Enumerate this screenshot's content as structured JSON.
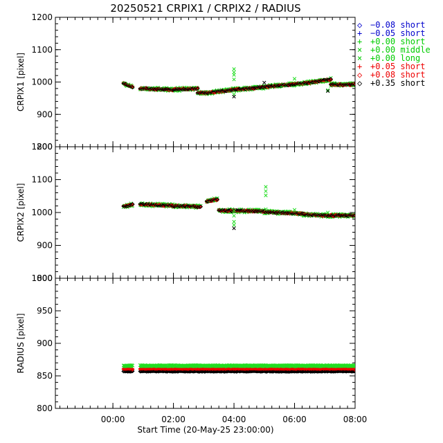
{
  "chart_data": {
    "type": "scatter",
    "title": "20250521 CRPIX1 / CRPIX2 / RADIUS",
    "xlabel": "Start Time (20-May-25 23:00:00)",
    "x_unit": "hours since 23:00",
    "xlim": [
      -0.9,
      9.0
    ],
    "x_ticks": [
      {
        "value": 1,
        "label": "00:00"
      },
      {
        "value": 3,
        "label": "02:00"
      },
      {
        "value": 5,
        "label": "04:00"
      },
      {
        "value": 7,
        "label": "06:00"
      },
      {
        "value": 9,
        "label": "08:00"
      }
    ],
    "panels": [
      {
        "name": "crpix1",
        "ylabel": "CRPIX1 [pixel]",
        "ylim": [
          800,
          1200
        ],
        "y_ticks": [
          800,
          900,
          1000,
          1100,
          1200
        ],
        "segments": [
          {
            "start": 1.35,
            "end": 1.65,
            "y0": 995,
            "y1": 985
          },
          {
            "start": 1.9,
            "end": 3.0,
            "y0": 980,
            "y1": 976
          },
          {
            "start": 3.0,
            "end": 3.8,
            "y0": 977,
            "y1": 980
          },
          {
            "start": 3.8,
            "end": 4.25,
            "y0": 966,
            "y1": 967
          },
          {
            "start": 4.25,
            "end": 4.9,
            "y0": 968,
            "y1": 975
          },
          {
            "start": 4.9,
            "end": 6.0,
            "y0": 976,
            "y1": 984
          },
          {
            "start": 6.0,
            "end": 7.3,
            "y0": 985,
            "y1": 996
          },
          {
            "start": 7.3,
            "end": 8.2,
            "y0": 996,
            "y1": 1008
          },
          {
            "start": 8.2,
            "end": 9.0,
            "y0": 992,
            "y1": 992
          }
        ],
        "outliers": [
          {
            "x": 5.0,
            "values": [
              1040,
              1030,
              1022,
              1008,
              962,
              955
            ]
          },
          {
            "x": 6.0,
            "values": [
              998
            ]
          },
          {
            "x": 7.0,
            "values": [
              1010
            ]
          },
          {
            "x": 8.1,
            "values": [
              975,
              972
            ]
          }
        ]
      },
      {
        "name": "crpix2",
        "ylabel": "CRPIX2 [pixel]",
        "ylim": [
          800,
          1200
        ],
        "y_ticks": [
          800,
          900,
          1000,
          1100,
          1200
        ],
        "segments": [
          {
            "start": 1.35,
            "end": 1.65,
            "y0": 1018,
            "y1": 1024
          },
          {
            "start": 1.9,
            "end": 3.0,
            "y0": 1025,
            "y1": 1021
          },
          {
            "start": 3.0,
            "end": 3.9,
            "y0": 1020,
            "y1": 1018
          },
          {
            "start": 4.1,
            "end": 4.45,
            "y0": 1034,
            "y1": 1040
          },
          {
            "start": 4.5,
            "end": 6.0,
            "y0": 1006,
            "y1": 1004
          },
          {
            "start": 6.0,
            "end": 7.3,
            "y0": 1002,
            "y1": 996
          },
          {
            "start": 7.3,
            "end": 8.2,
            "y0": 994,
            "y1": 990
          },
          {
            "start": 8.2,
            "end": 9.0,
            "y0": 991,
            "y1": 991
          }
        ],
        "outliers": [
          {
            "x": 5.0,
            "values": [
              1005,
              990,
              972,
              962,
              952
            ]
          },
          {
            "x": 6.05,
            "values": [
              1078,
              1065,
              1052,
              1010
            ]
          },
          {
            "x": 7.0,
            "values": [
              1008
            ]
          },
          {
            "x": 8.1,
            "values": [
              1000
            ]
          }
        ]
      },
      {
        "name": "radius",
        "ylabel": "RADIUS [pixel]",
        "ylim": [
          800,
          1000
        ],
        "y_ticks": [
          800,
          850,
          900,
          950,
          1000
        ],
        "segments": [
          {
            "start": 1.35,
            "end": 1.65,
            "y0": 860,
            "y1": 860
          },
          {
            "start": 1.9,
            "end": 9.0,
            "y0": 860,
            "y1": 860
          }
        ],
        "series_offsets": [
          {
            "label": "-0.08 short",
            "offset": -2
          },
          {
            "label": "-0.05 short",
            "offset": -1
          },
          {
            "label": "+0.00 short",
            "offset": 4
          },
          {
            "label": "+0.00 middle",
            "offset": 5
          },
          {
            "label": "+0.00 long",
            "offset": 6
          },
          {
            "label": "+0.05 short",
            "offset": 1
          },
          {
            "label": "+0.08 short",
            "offset": 0
          },
          {
            "label": "+0.35 short",
            "offset": -3
          }
        ]
      }
    ],
    "legend": {
      "placement": "right",
      "entries": [
        {
          "symbol": "◇",
          "label": "−0.08 short",
          "color": "#0000cc"
        },
        {
          "symbol": "+",
          "label": "−0.05 short",
          "color": "#0000cc"
        },
        {
          "symbol": "+",
          "label": "+0.00 short",
          "color": "#00cc00"
        },
        {
          "symbol": "×",
          "label": "+0.00 middle",
          "color": "#00cc00"
        },
        {
          "symbol": "×",
          "label": "+0.00 long",
          "color": "#00cc00"
        },
        {
          "symbol": "+",
          "label": "+0.05 short",
          "color": "#ee0000"
        },
        {
          "symbol": "◇",
          "label": "+0.08 short",
          "color": "#ee0000"
        },
        {
          "symbol": "◇",
          "label": "+0.35 short",
          "color": "#000000"
        }
      ]
    },
    "colors": {
      "blue": "#0000cc",
      "green": "#22dd22",
      "red": "#ee0000",
      "black": "#000000"
    }
  }
}
